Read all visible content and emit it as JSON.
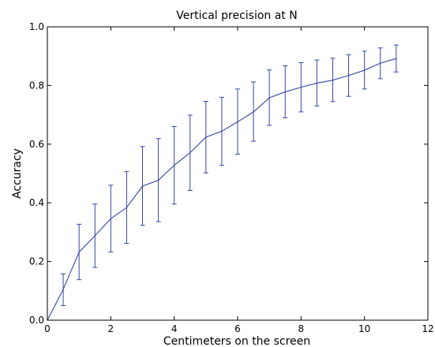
{
  "chart_data": {
    "type": "line",
    "title": "Vertical precision at N",
    "xlabel": "Centimeters on the screen",
    "ylabel": "Accuracy",
    "xlim": [
      0,
      12
    ],
    "ylim": [
      0.0,
      1.0
    ],
    "x_ticks": [
      0,
      2,
      4,
      6,
      8,
      10,
      12
    ],
    "x_tick_labels": [
      "0",
      "2",
      "4",
      "6",
      "8",
      "10",
      "12"
    ],
    "y_ticks": [
      0.0,
      0.2,
      0.4,
      0.6,
      0.8,
      1.0
    ],
    "y_tick_labels": [
      "0.0",
      "0.2",
      "0.4",
      "0.6",
      "0.8",
      "1.0"
    ],
    "grid": false,
    "series": [
      {
        "color": "#3346a0",
        "x": [
          0,
          0.5,
          1.0,
          1.5,
          2.0,
          2.5,
          3.0,
          3.5,
          4.0,
          4.5,
          5.0,
          5.5,
          6.0,
          6.5,
          7.0,
          7.5,
          8.0,
          8.5,
          9.0,
          9.5,
          10.0,
          10.5,
          11.0
        ],
        "y": [
          0.0,
          0.105,
          0.232,
          0.288,
          0.346,
          0.384,
          0.457,
          0.477,
          0.528,
          0.571,
          0.624,
          0.644,
          0.676,
          0.71,
          0.758,
          0.778,
          0.794,
          0.808,
          0.818,
          0.834,
          0.852,
          0.876,
          0.892
        ],
        "err_low": [
          null,
          0.05,
          0.138,
          0.18,
          0.232,
          0.262,
          0.323,
          0.336,
          0.396,
          0.442,
          0.502,
          0.528,
          0.566,
          0.61,
          0.664,
          0.69,
          0.71,
          0.73,
          0.745,
          0.763,
          0.788,
          0.823,
          0.846
        ],
        "err_high": [
          null,
          0.158,
          0.327,
          0.396,
          0.46,
          0.507,
          0.592,
          0.619,
          0.66,
          0.699,
          0.746,
          0.76,
          0.788,
          0.812,
          0.853,
          0.867,
          0.878,
          0.887,
          0.893,
          0.905,
          0.917,
          0.928,
          0.938
        ]
      }
    ]
  }
}
